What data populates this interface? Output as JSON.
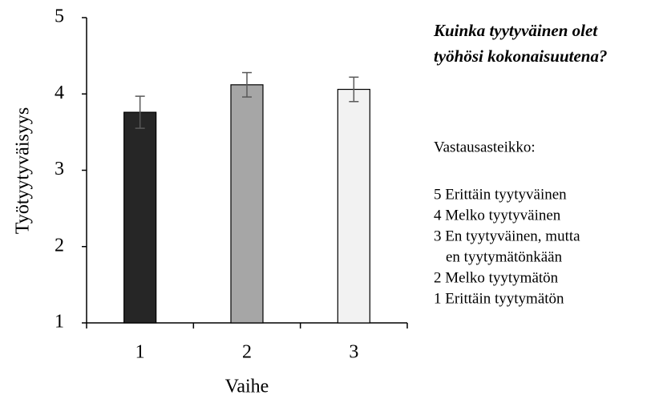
{
  "chart_data": {
    "type": "bar",
    "y_label": "Työtyytyväisyys",
    "x_label": "Vaihe",
    "categories": [
      "1",
      "2",
      "3"
    ],
    "values": [
      3.76,
      4.12,
      4.06
    ],
    "errors": [
      0.21,
      0.16,
      0.16
    ],
    "colors": [
      "#262626",
      "#a6a6a6",
      "#f2f2f2"
    ],
    "ylim": [
      1,
      5
    ],
    "yticks": [
      1,
      2,
      3,
      4,
      5
    ],
    "grid": false,
    "side_title_lines": [
      "Kuinka tyytyväinen olet",
      "työhösi kokonaisuutena?"
    ],
    "scale_heading": "Vastausasteikko:",
    "scale_lines": [
      "5 Erittäin tyytyväinen",
      "4 Melko tyytyväinen",
      "3 En tyytyväinen, mutta",
      "en tyytymätönkään",
      "2 Melko tyytymätön",
      "1 Erittäin tyytymätön"
    ]
  }
}
